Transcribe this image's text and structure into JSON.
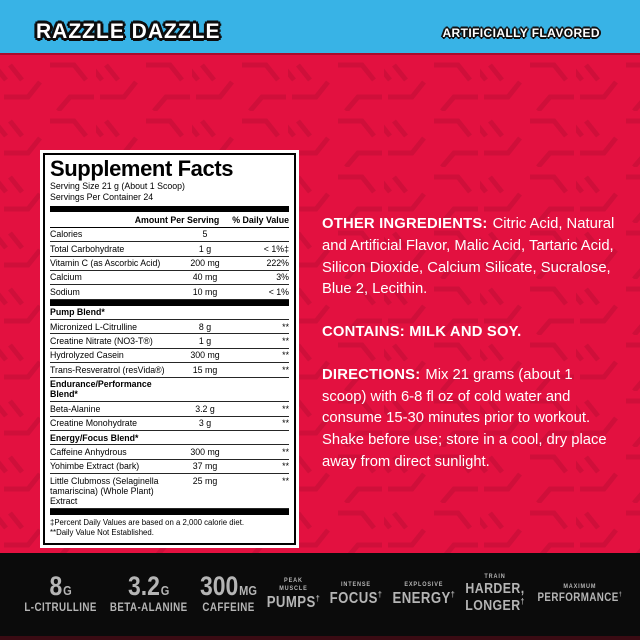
{
  "header": {
    "product_name": "RAZZLE DAZZLE",
    "flavor_note": "ARTIFICIALLY FLAVORED"
  },
  "colors": {
    "top_bar_cyan": "#38b3e6",
    "body_red": "#e31140",
    "bottom_bar_black": "#0b0b0b",
    "stat_text_gray": "#b5b5b5"
  },
  "supplement_facts": {
    "title": "Supplement Facts",
    "serving_size": "Serving Size 21 g (About 1 Scoop)",
    "servings_per_container": "Servings Per Container 24",
    "col_amount": "Amount Per Serving",
    "col_dv": "% Daily Value",
    "rows": [
      {
        "type": "item",
        "name": "Calories",
        "amount": "5",
        "dv": ""
      },
      {
        "type": "item",
        "name": "Total Carbohydrate",
        "amount": "1 g",
        "dv": "< 1%‡"
      },
      {
        "type": "item",
        "name": "Vitamin C (as Ascorbic Acid)",
        "amount": "200 mg",
        "dv": "222%"
      },
      {
        "type": "item",
        "name": "Calcium",
        "amount": "40 mg",
        "dv": "3%"
      },
      {
        "type": "item",
        "name": "Sodium",
        "amount": "10 mg",
        "dv": "< 1%"
      },
      {
        "type": "divider"
      },
      {
        "type": "blend",
        "name": "Pump Blend*"
      },
      {
        "type": "item",
        "name": "Micronized L-Citrulline",
        "amount": "8 g",
        "dv": "**"
      },
      {
        "type": "item",
        "name": "Creatine Nitrate (NO3-T®)",
        "amount": "1 g",
        "dv": "**"
      },
      {
        "type": "item",
        "name": "Hydrolyzed Casein",
        "amount": "300 mg",
        "dv": "**"
      },
      {
        "type": "item",
        "name": "Trans-Resveratrol (resVida®)",
        "amount": "15 mg",
        "dv": "**"
      },
      {
        "type": "blend",
        "name": "Endurance/Performance Blend*"
      },
      {
        "type": "item",
        "name": "Beta-Alanine",
        "amount": "3.2 g",
        "dv": "**"
      },
      {
        "type": "item",
        "name": "Creatine Monohydrate",
        "amount": "3 g",
        "dv": "**"
      },
      {
        "type": "blend",
        "name": "Energy/Focus Blend*"
      },
      {
        "type": "item",
        "name": "Caffeine Anhydrous",
        "amount": "300 mg",
        "dv": "**"
      },
      {
        "type": "item",
        "name": "Yohimbe Extract (bark)",
        "amount": "37 mg",
        "dv": "**"
      },
      {
        "type": "item",
        "name": "Little Clubmoss (Selaginella tamariscina) (Whole Plant) Extract",
        "amount": "25 mg",
        "dv": "**"
      },
      {
        "type": "divider"
      }
    ],
    "footnotes": [
      "‡Percent Daily Values are based on a 2,000 calorie diet.",
      "**Daily Value Not Established."
    ]
  },
  "info": {
    "other_ingredients_label": "OTHER INGREDIENTS:",
    "other_ingredients": "Citric Acid, Natural and Artificial Flavor, Malic Acid, Tartaric Acid, Silicon Dioxide, Calcium Silicate, Sucralose, Blue 2, Lecithin.",
    "contains": "CONTAINS: MILK AND SOY.",
    "directions_label": "DIRECTIONS:",
    "directions": "Mix 21 grams (about 1 scoop) with 6-8 fl oz of cold water and consume 15-30 minutes prior to workout. Shake before use; store in a cool, dry place away from direct sunlight."
  },
  "stats": [
    {
      "big": "8",
      "unit": "G",
      "label": "L-CITRULLINE"
    },
    {
      "big": "3.2",
      "unit": "G",
      "label": "BETA-ALANINE"
    },
    {
      "big": "300",
      "unit": "MG",
      "label": "CAFFEINE"
    },
    {
      "kicker_lines": [
        "PEAK",
        "MUSCLE"
      ],
      "word_lines": [
        "PUMPS†"
      ]
    },
    {
      "kicker_lines": [
        "INTENSE"
      ],
      "word_lines": [
        "FOCUS†"
      ]
    },
    {
      "kicker_lines": [
        "EXPLOSIVE"
      ],
      "word_lines": [
        "ENERGY†"
      ]
    },
    {
      "kicker_lines": [
        "TRAIN"
      ],
      "word_lines": [
        "HARDER,",
        "LONGER†"
      ]
    },
    {
      "kicker_lines": [
        "MAXIMUM"
      ],
      "word_lines": [
        "PERFORMANCE†"
      ]
    }
  ]
}
